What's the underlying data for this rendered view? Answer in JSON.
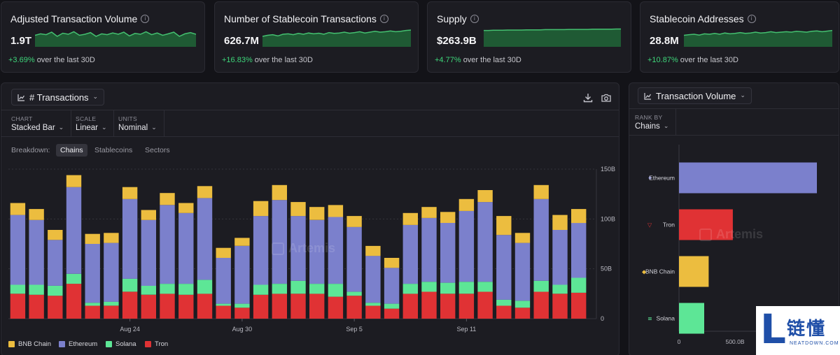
{
  "stats": [
    {
      "title": "Adjusted Transaction Volume",
      "value": "1.9T",
      "change_pct": "+3.69%",
      "change_text": "over the last 30D",
      "spark": [
        0.55,
        0.62,
        0.58,
        0.7,
        0.5,
        0.65,
        0.6,
        0.72,
        0.55,
        0.6,
        0.68,
        0.5,
        0.62,
        0.58,
        0.66,
        0.6,
        0.7,
        0.52,
        0.64,
        0.6,
        0.72,
        0.58,
        0.66,
        0.55,
        0.62,
        0.7,
        0.5,
        0.62,
        0.68,
        0.6
      ]
    },
    {
      "title": "Number of Stablecoin Transactions",
      "value": "626.7M",
      "change_pct": "+16.83%",
      "change_text": "over the last 30D",
      "spark": [
        0.5,
        0.55,
        0.58,
        0.52,
        0.6,
        0.62,
        0.58,
        0.64,
        0.6,
        0.66,
        0.62,
        0.65,
        0.6,
        0.68,
        0.64,
        0.66,
        0.7,
        0.65,
        0.68,
        0.72,
        0.66,
        0.7,
        0.74,
        0.7,
        0.72,
        0.76,
        0.72,
        0.74,
        0.78,
        0.8
      ]
    },
    {
      "title": "Supply",
      "value": "$263.9B",
      "change_pct": "+4.77%",
      "change_text": "over the last 30D",
      "spark": [
        0.78,
        0.78,
        0.79,
        0.79,
        0.79,
        0.8,
        0.8,
        0.8,
        0.8,
        0.81,
        0.81,
        0.81,
        0.81,
        0.82,
        0.82,
        0.82,
        0.82,
        0.82,
        0.83,
        0.83,
        0.83,
        0.83,
        0.83,
        0.84,
        0.84,
        0.84,
        0.84,
        0.84,
        0.85,
        0.85
      ]
    },
    {
      "title": "Stablecoin Addresses",
      "value": "28.8M",
      "change_pct": "+10.87%",
      "change_text": "over the last 30D",
      "spark": [
        0.55,
        0.58,
        0.6,
        0.56,
        0.62,
        0.6,
        0.64,
        0.6,
        0.66,
        0.62,
        0.64,
        0.68,
        0.64,
        0.66,
        0.7,
        0.66,
        0.68,
        0.72,
        0.68,
        0.7,
        0.72,
        0.7,
        0.74,
        0.72,
        0.7,
        0.74,
        0.76,
        0.72,
        0.75,
        0.78
      ]
    }
  ],
  "main_panel": {
    "title": "# Transactions",
    "chart_label": "CHART",
    "chart_value": "Stacked Bar",
    "scale_label": "SCALE",
    "scale_value": "Linear",
    "units_label": "UNITS",
    "units_value": "Nominal",
    "breakdown_label": "Breakdown:",
    "breakdown_options": [
      "Chains",
      "Stablecoins",
      "Sectors"
    ],
    "watermark": "Artemis"
  },
  "side_panel": {
    "title": "Transaction Volume",
    "rank_label": "RANK BY",
    "rank_value": "Chains",
    "watermark": "Artemis"
  },
  "colors": {
    "bnb": "#ecbd3f",
    "ethereum": "#7b80cc",
    "solana": "#5de696",
    "tron": "#e03234",
    "spark_line": "#44c070",
    "spark_fill": "#1f5a34"
  },
  "chart_data": [
    {
      "type": "bar",
      "title": "# Transactions",
      "stacked": true,
      "x_ticks": [
        "Aug 24",
        "Aug 30",
        "Sep 5",
        "Sep 11"
      ],
      "y_ticks": [
        "150B",
        "100B",
        "50B",
        "0"
      ],
      "ylim": [
        0,
        150
      ],
      "unit": "B",
      "legend_position": "bottom-left",
      "series": [
        {
          "name": "Tron",
          "values": [
            25,
            24,
            23,
            35,
            13,
            13,
            27,
            24,
            25,
            24,
            25,
            13,
            11,
            24,
            25,
            25,
            25,
            22,
            23,
            13,
            10,
            25,
            27,
            25,
            25,
            27,
            13,
            11,
            27,
            25,
            26
          ]
        },
        {
          "name": "Solana",
          "values": [
            9,
            10,
            10,
            10,
            3,
            4,
            13,
            9,
            10,
            11,
            14,
            2,
            4,
            10,
            10,
            13,
            10,
            13,
            4,
            3,
            5,
            10,
            10,
            11,
            12,
            10,
            6,
            7,
            11,
            9,
            15
          ]
        },
        {
          "name": "Ethereum",
          "values": [
            70,
            65,
            46,
            87,
            59,
            59,
            80,
            66,
            79,
            71,
            82,
            46,
            58,
            69,
            84,
            65,
            64,
            67,
            65,
            47,
            36,
            59,
            64,
            60,
            71,
            80,
            65,
            58,
            82,
            55,
            55
          ]
        },
        {
          "name": "BNB Chain",
          "values": [
            12,
            11,
            10,
            12,
            10,
            10,
            12,
            10,
            12,
            10,
            12,
            10,
            8,
            15,
            15,
            14,
            13,
            12,
            11,
            10,
            10,
            12,
            11,
            11,
            12,
            12,
            19,
            10,
            14,
            15,
            14
          ]
        }
      ]
    },
    {
      "type": "bar",
      "title": "Transaction Volume",
      "orientation": "horizontal",
      "categories": [
        "Ethereum",
        "Tron",
        "BNB Chain",
        "Solana"
      ],
      "values": [
        1230,
        480,
        265,
        225
      ],
      "x_ticks": [
        "0",
        "500.0B"
      ],
      "unit": "B"
    }
  ]
}
